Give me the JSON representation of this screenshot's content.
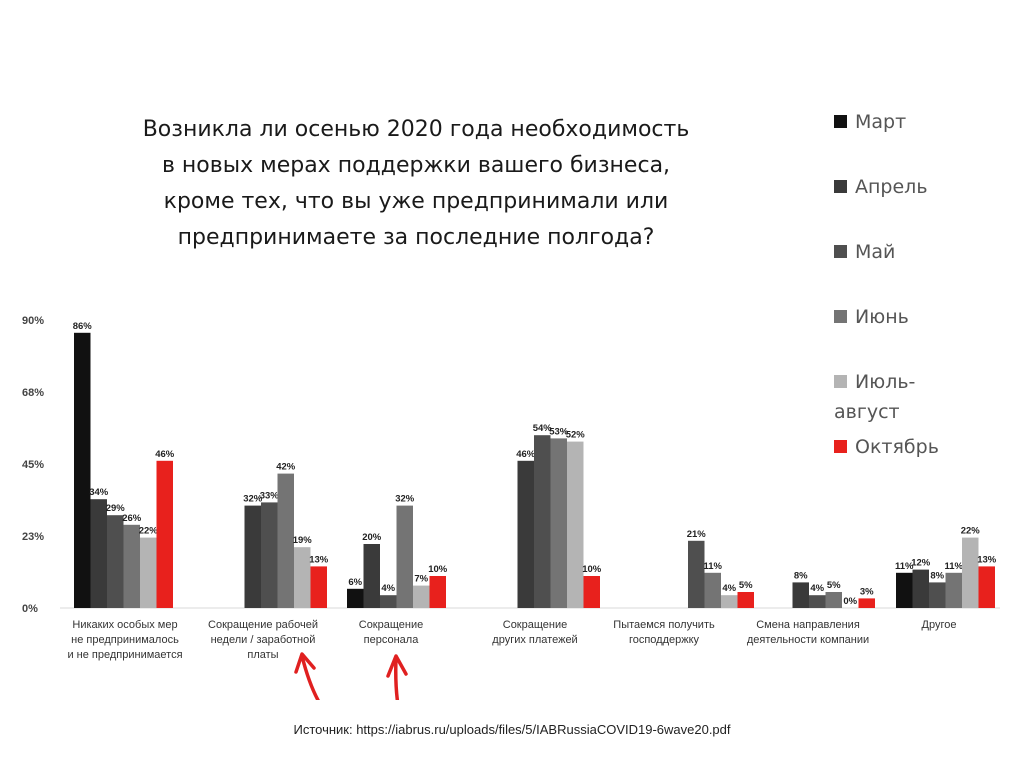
{
  "title_lines": [
    "Возникла ли осенью 2020 года необходимость",
    "в новых мерах поддержки вашего бизнеса,",
    "кроме тех, что вы уже предпринимали или",
    "предпринимаете за последние полгода?"
  ],
  "source": "Источник: https://iabrus.ru/uploads/files/5/IABRussiaCOVID19-6wave20.pdf",
  "colors": {
    "mar": "#111111",
    "apr": "#3a3a3a",
    "may": "#4f4f4f",
    "jun": "#747474",
    "julaug": "#b4b4b4",
    "oct": "#e8211d",
    "arrow": "#e02020"
  },
  "legend": [
    {
      "key": "mar",
      "label": "Март"
    },
    {
      "key": "apr",
      "label": "Апрель"
    },
    {
      "key": "may",
      "label": "Май"
    },
    {
      "key": "jun",
      "label": "Июнь"
    },
    {
      "key": "julaug",
      "label": "Июль-",
      "label2": "август"
    },
    {
      "key": "oct",
      "label": "Октябрь"
    }
  ],
  "chart_data": {
    "type": "bar",
    "ylim": [
      0,
      90
    ],
    "yticks": [
      {
        "value": 0,
        "label": "0%"
      },
      {
        "value": 22.5,
        "label": "23%"
      },
      {
        "value": 45,
        "label": "45%"
      },
      {
        "value": 67.5,
        "label": "68%"
      },
      {
        "value": 90,
        "label": "90%"
      }
    ],
    "categories": [
      [
        "Никаких особых мер",
        "не предпринималось",
        "и не предпринимается"
      ],
      [
        "Сокращение рабочей",
        "недели / заработной",
        "платы"
      ],
      [
        "Сокращение",
        "персонала"
      ],
      [
        "Сокращение",
        "других платежей"
      ],
      [
        "Пытаемся получить",
        "господдержку"
      ],
      [
        "Смена направления",
        "деятельности компании"
      ],
      [
        "Другое"
      ]
    ],
    "series": [
      {
        "key": "mar",
        "name": "Март",
        "values": [
          86,
          null,
          6,
          null,
          null,
          null,
          11
        ]
      },
      {
        "key": "apr",
        "name": "Апрель",
        "values": [
          34,
          32,
          20,
          46,
          null,
          8,
          12
        ]
      },
      {
        "key": "may",
        "name": "Май",
        "values": [
          29,
          33,
          4,
          54,
          21,
          4,
          8
        ]
      },
      {
        "key": "jun",
        "name": "Июнь",
        "values": [
          26,
          42,
          32,
          53,
          11,
          5,
          11
        ]
      },
      {
        "key": "julaug",
        "name": "Июль-август",
        "values": [
          22,
          19,
          7,
          52,
          4,
          0,
          22
        ]
      },
      {
        "key": "oct",
        "name": "Октябрь",
        "values": [
          46,
          13,
          10,
          10,
          5,
          3,
          13
        ]
      }
    ],
    "grid": false,
    "legend_position": "right",
    "annotations": [
      "red arrows pointing to categories 2 and 3"
    ]
  }
}
